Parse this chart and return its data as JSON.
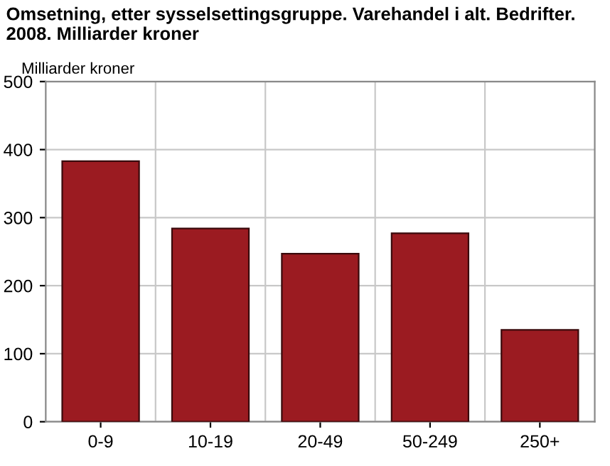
{
  "chart_data": {
    "type": "bar",
    "title": "Omsetning, etter sysselsettingsgruppe. Varehandel i alt. Bedrifter.\n2008. Milliarder kroner",
    "ylabel": "Milliarder kroner",
    "categories": [
      "0-9",
      "10-19",
      "20-49",
      "50-249",
      "250+"
    ],
    "values": [
      383,
      284,
      247,
      277,
      135
    ],
    "color": "#9b1b21",
    "ylim": [
      0,
      500
    ],
    "yticks": [
      0,
      100,
      200,
      300,
      400,
      500
    ],
    "grid": true
  }
}
